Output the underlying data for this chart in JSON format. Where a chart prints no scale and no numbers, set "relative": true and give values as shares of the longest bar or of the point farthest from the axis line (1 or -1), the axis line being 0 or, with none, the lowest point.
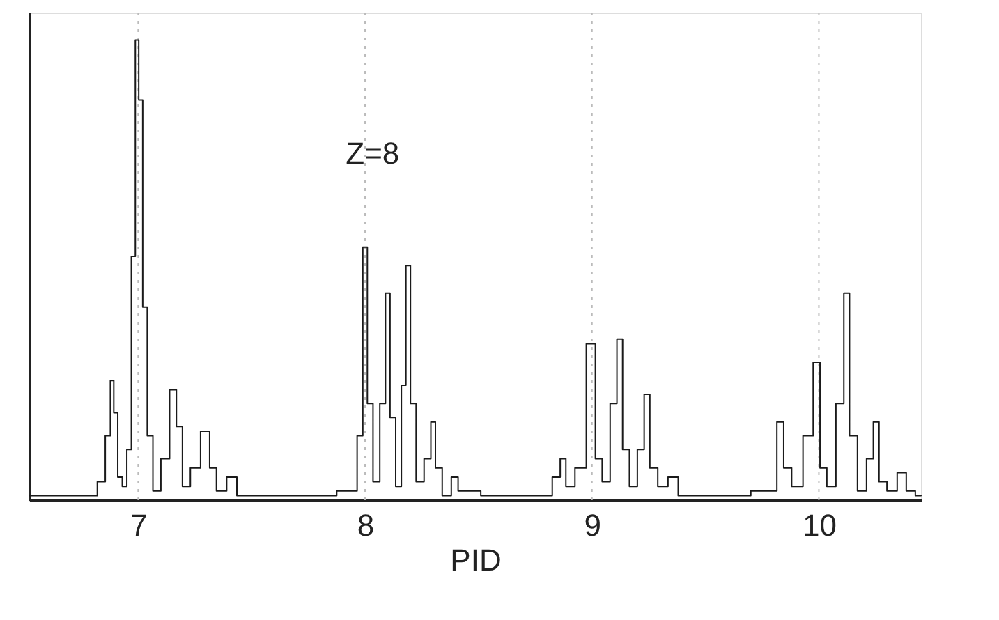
{
  "chart_data": {
    "type": "step",
    "xlabel": "PID",
    "xlim": [
      6.52,
      10.45
    ],
    "xticks": [
      7,
      8,
      9,
      10
    ],
    "relative": true,
    "grid": "x",
    "line_style": "solid",
    "marker": "none",
    "annotations": [
      "Z=8"
    ],
    "series": [
      {
        "color": "#1a1a1a",
        "x": [
          6.52,
          6.6,
          6.7,
          6.8,
          6.84,
          6.87,
          6.885,
          6.9,
          6.92,
          6.94,
          6.96,
          6.98,
          6.995,
          7.01,
          7.03,
          7.05,
          7.08,
          7.12,
          7.157,
          7.18,
          7.21,
          7.25,
          7.3,
          7.33,
          7.36,
          7.42,
          7.45,
          7.6,
          7.8,
          7.95,
          7.98,
          8.0,
          8.02,
          8.05,
          8.08,
          8.1,
          8.12,
          8.15,
          8.17,
          8.19,
          8.21,
          8.24,
          8.28,
          8.3,
          8.32,
          8.36,
          8.4,
          8.42,
          8.6,
          8.8,
          8.85,
          8.87,
          8.9,
          8.95,
          9.0,
          9.03,
          9.06,
          9.1,
          9.12,
          9.15,
          9.18,
          9.22,
          9.24,
          9.27,
          9.31,
          9.36,
          9.4,
          9.6,
          9.8,
          9.83,
          9.86,
          9.9,
          9.96,
          9.99,
          10.02,
          10.05,
          10.1,
          10.12,
          10.15,
          10.19,
          10.23,
          10.25,
          10.28,
          10.32,
          10.37,
          10.4,
          10.45
        ],
        "values": [
          0.01,
          0.01,
          0.01,
          0.01,
          0.04,
          0.14,
          0.26,
          0.19,
          0.05,
          0.03,
          0.11,
          0.53,
          1,
          0.87,
          0.42,
          0.14,
          0.02,
          0.09,
          0.24,
          0.16,
          0.03,
          0.07,
          0.15,
          0.07,
          0.02,
          0.05,
          0.01,
          0.01,
          0.01,
          0.02,
          0.14,
          0.55,
          0.21,
          0.04,
          0.21,
          0.45,
          0.18,
          0.03,
          0.25,
          0.51,
          0.21,
          0.04,
          0.09,
          0.17,
          0.07,
          0.01,
          0.05,
          0.02,
          0.01,
          0.01,
          0.05,
          0.09,
          0.03,
          0.07,
          0.34,
          0.09,
          0.04,
          0.21,
          0.35,
          0.11,
          0.03,
          0.11,
          0.23,
          0.07,
          0.03,
          0.05,
          0.01,
          0.01,
          0.02,
          0.17,
          0.07,
          0.03,
          0.14,
          0.3,
          0.07,
          0.03,
          0.21,
          0.45,
          0.14,
          0.02,
          0.09,
          0.17,
          0.04,
          0.02,
          0.06,
          0.02,
          0.01
        ]
      }
    ]
  }
}
